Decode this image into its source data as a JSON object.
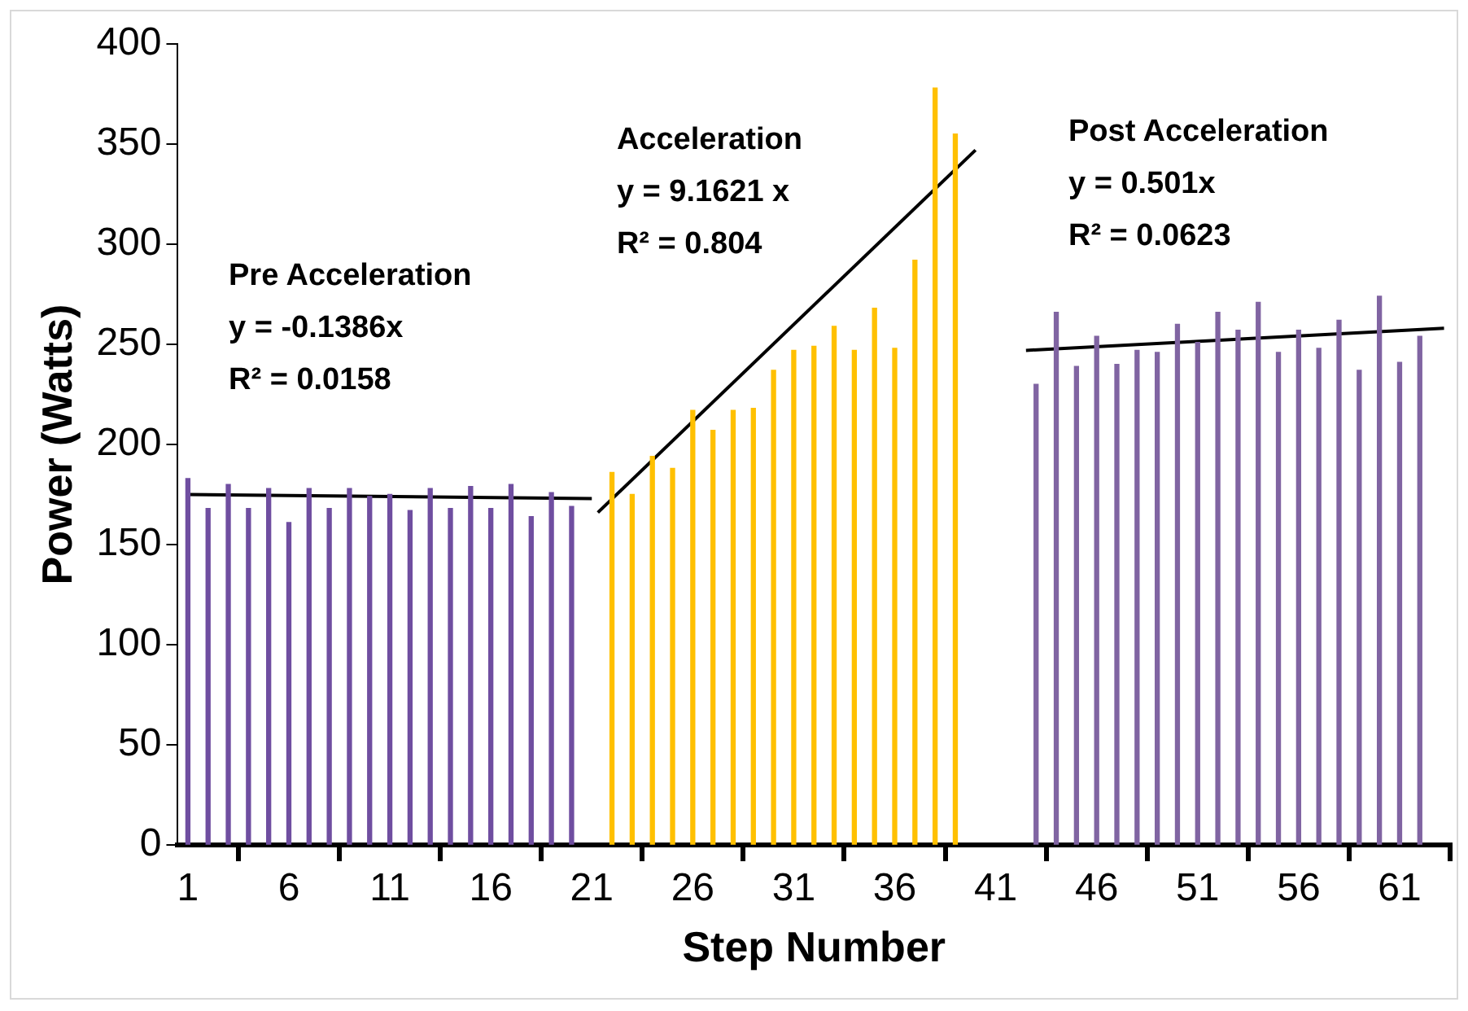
{
  "chart_data": {
    "type": "bar",
    "xlabel": "Step Number",
    "ylabel": "Power (Watts)",
    "xlim": [
      0.5,
      63.5
    ],
    "xticks": [
      1,
      6,
      11,
      16,
      21,
      26,
      31,
      36,
      41,
      46,
      51,
      56,
      61
    ],
    "ylim": [
      0,
      400
    ],
    "yticks": [
      0,
      50,
      100,
      150,
      200,
      250,
      300,
      350,
      400
    ],
    "grid": false,
    "legend": false,
    "series": [
      {
        "color": "#6f4ea0",
        "x": [
          1,
          2,
          3,
          4,
          5,
          6,
          7,
          8,
          9,
          10,
          11,
          12,
          13,
          14,
          15,
          16,
          17,
          18,
          19,
          20
        ],
        "values": [
          183,
          168,
          180,
          168,
          178,
          161,
          178,
          168,
          178,
          174,
          175,
          167,
          178,
          168,
          179,
          168,
          180,
          164,
          176,
          169
        ]
      },
      {
        "color": "#ffc000",
        "x": [
          22,
          23,
          24,
          25,
          26,
          27,
          28,
          29,
          30,
          31,
          32,
          33,
          34,
          35,
          36,
          37,
          38,
          39
        ],
        "values": [
          186,
          175,
          194,
          188,
          217,
          207,
          217,
          218,
          237,
          247,
          249,
          259,
          247,
          268,
          248,
          292,
          378,
          355
        ]
      },
      {
        "color": "#8064a2",
        "x": [
          43,
          44,
          45,
          46,
          47,
          48,
          49,
          50,
          51,
          52,
          53,
          54,
          55,
          56,
          57,
          58,
          59,
          60,
          61,
          62
        ],
        "values": [
          230,
          266,
          239,
          254,
          240,
          247,
          246,
          260,
          251,
          266,
          257,
          271,
          246,
          257,
          248,
          262,
          237,
          274,
          241,
          254
        ]
      },
      {
        "type": "line",
        "color": "#000000",
        "x": [
          1,
          21
        ],
        "values": [
          175,
          173
        ]
      },
      {
        "type": "line",
        "color": "#000000",
        "x": [
          21.3,
          40
        ],
        "values": [
          166,
          347
        ]
      },
      {
        "type": "line",
        "color": "#000000",
        "x": [
          42.5,
          63.2
        ],
        "values": [
          247,
          258
        ]
      }
    ],
    "annotations": [
      "Pre Acceleration",
      "y = -0.1386x",
      "R² = 0.0158",
      "Acceleration",
      "y = 9.1621 x",
      "R² = 0.804",
      "Post Acceleration",
      "y = 0.501x",
      "R² = 0.0623"
    ]
  }
}
